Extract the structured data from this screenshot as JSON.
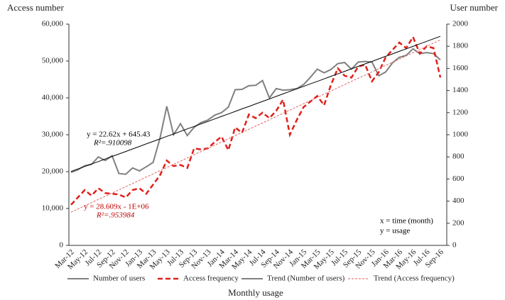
{
  "chart_data": {
    "type": "line",
    "y_axis_title": "Access number",
    "y2_axis_title": "User number",
    "x_axis_title": "Monthly usage",
    "categories": [
      "Mar-12",
      null,
      "May-12",
      null,
      "Jul-12",
      null,
      "Sep-12",
      null,
      "Nov-12",
      null,
      "Jan-13",
      null,
      "Mar-13",
      null,
      "May-13",
      null,
      "Jul-13",
      null,
      "Sep-13",
      null,
      "Nov-13",
      null,
      "Jan-14",
      null,
      "Mar-14",
      null,
      "May-14",
      null,
      "Jul-14",
      null,
      "Sep-14",
      null,
      "Nov-14",
      null,
      "Jan-15",
      null,
      "Mar-15",
      null,
      "May-15",
      null,
      "Jul-15",
      null,
      "Sep-15",
      null,
      "Nov-15",
      null,
      "Jan-16",
      null,
      "Mar-16",
      null,
      "May-16",
      null,
      "Jul-16",
      null,
      "Sep-16"
    ],
    "series": [
      {
        "name": "Number of users",
        "color": "#808080",
        "dash": "none",
        "width": 2,
        "axis": "y2",
        "values": [
          660,
          683,
          720,
          733,
          800,
          767,
          810,
          650,
          643,
          700,
          673,
          710,
          750,
          967,
          1257,
          1000,
          1100,
          993,
          1067,
          1110,
          1133,
          1177,
          1200,
          1250,
          1407,
          1410,
          1443,
          1447,
          1490,
          1333,
          1417,
          1403,
          1407,
          1417,
          1453,
          1520,
          1593,
          1560,
          1590,
          1643,
          1653,
          1593,
          1657,
          1663,
          1657,
          1533,
          1567,
          1650,
          1700,
          1717,
          1777,
          1733,
          1743,
          1733,
          1677
        ]
      },
      {
        "name": "Access frequency",
        "color": "#e0201b",
        "dash": "7 4",
        "width": 2.5,
        "values": [
          11000,
          13000,
          15000,
          13500,
          15500,
          14200,
          14000,
          13800,
          13000,
          15000,
          15500,
          14000,
          16500,
          19000,
          23000,
          21500,
          21800,
          21000,
          26300,
          26000,
          26300,
          28000,
          29500,
          25800,
          32000,
          30500,
          35500,
          34500,
          36000,
          34500,
          36500,
          39500,
          30000,
          34000,
          37500,
          39000,
          40500,
          38000,
          43500,
          48000,
          46000,
          45500,
          48500,
          49000,
          44500,
          47000,
          51000,
          53000,
          55000,
          53500,
          56500,
          52000,
          54000,
          53500,
          45500
        ]
      },
      {
        "name": "Trend (Number of users)",
        "color": "#000000",
        "dash": "none",
        "width": 1,
        "axis": "y2",
        "values": [
          668,
          691,
          713,
          736,
          758,
          781,
          804,
          826,
          849,
          872,
          894,
          917,
          940,
          962,
          985,
          1007,
          1030,
          1053,
          1075,
          1098,
          1120,
          1143,
          1166,
          1188,
          1211,
          1234,
          1256,
          1279,
          1301,
          1324,
          1347,
          1369,
          1392,
          1415,
          1437,
          1460,
          1482,
          1505,
          1528,
          1550,
          1573,
          1596,
          1618,
          1641,
          1663,
          1686,
          1709,
          1731,
          1754,
          1777,
          1799,
          1822,
          1844,
          1867,
          1890
        ]
      },
      {
        "name": "Trend (Access frequency)",
        "color": "#e06060",
        "dash": "3 2",
        "width": 1,
        "values": [
          9000,
          9865,
          10730,
          11595,
          12460,
          13325,
          14190,
          15055,
          15920,
          16785,
          17650,
          18515,
          19380,
          20245,
          21110,
          21975,
          22840,
          23705,
          24570,
          25435,
          26300,
          27165,
          28030,
          28895,
          29760,
          30625,
          31490,
          32355,
          33220,
          34085,
          34950,
          35815,
          36680,
          37545,
          38410,
          39275,
          40140,
          41005,
          41870,
          42735,
          43600,
          44465,
          45330,
          46195,
          47060,
          47925,
          48790,
          49655,
          50520,
          51385,
          52250,
          53115,
          53980,
          54845,
          55710
        ]
      }
    ],
    "ylim": [
      0,
      60000
    ],
    "yticks": [
      0,
      {
        "value": 10000,
        "label": "10,000"
      },
      {
        "value": 20000,
        "label": "20,000"
      },
      {
        "value": 30000,
        "label": "30,000"
      },
      {
        "value": 40000,
        "label": "40,000"
      },
      {
        "value": 50000,
        "label": "50,000"
      },
      {
        "value": 60000,
        "label": "60,000"
      }
    ],
    "y2lim": [
      0,
      2000
    ],
    "y2ticks": [
      0,
      200,
      400,
      600,
      800,
      1000,
      1200,
      1400,
      1600,
      1800,
      2000
    ],
    "annotations": [
      {
        "text": "y = 22.62x + 645.43",
        "color": "#000000"
      },
      {
        "text": "R²=.910098",
        "color": "#000000"
      },
      {
        "text": "y = 28.609x - 1E+06",
        "color": "#c00000"
      },
      {
        "text": "R²=.953984",
        "color": "#c00000"
      },
      {
        "text": "x = time (month)",
        "color": "#000000"
      },
      {
        "text": "y = usage",
        "color": "#000000"
      }
    ],
    "grid": false,
    "legend": "bottom"
  }
}
